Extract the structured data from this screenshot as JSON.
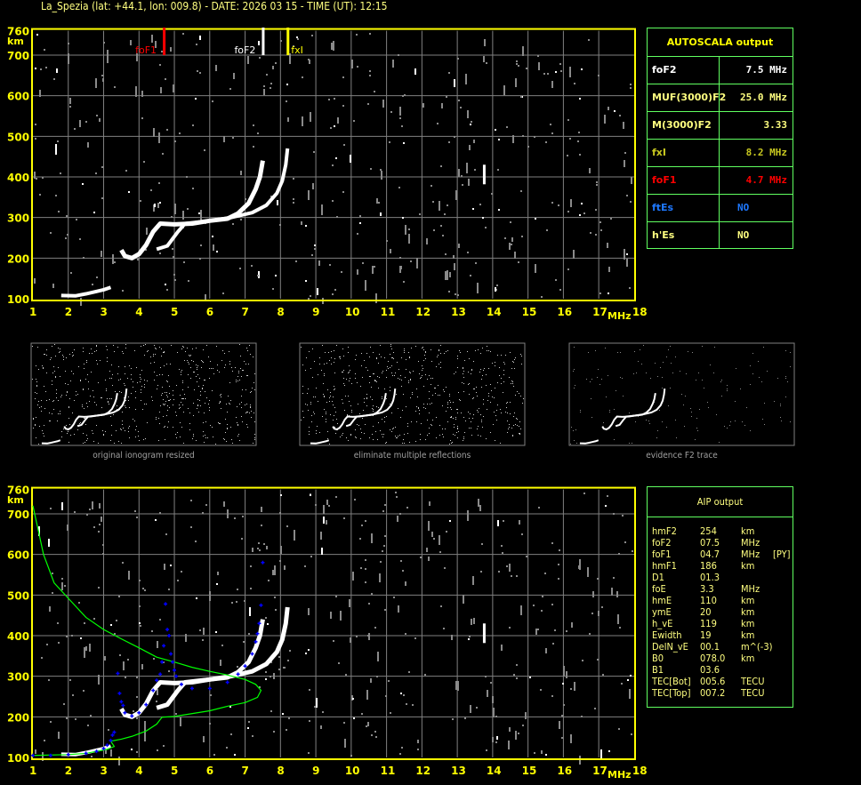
{
  "title": "La_Spezia (lat: +44.1, lon: 009.8) - DATE: 2026 03 15 - TIME (UT): 12:15",
  "colors": {
    "axis": "#ffff00",
    "grid": "#808080",
    "trace": "#ffffff",
    "profile": "#00ff00",
    "aip_trace": "#0000ff",
    "foF1": "#ff0000",
    "foF2": "#ffffff",
    "fxI": "#ffff00",
    "table_border": "#60ff60"
  },
  "autoscala": {
    "title": "AUTOSCALA output",
    "rows": [
      {
        "key": "foF2",
        "value": "7.5 MHz",
        "color": "#ffffff"
      },
      {
        "key": "MUF(3000)F2",
        "value": "25.0 MHz",
        "color": "#ffff80"
      },
      {
        "key": "M(3000)F2",
        "value": "3.33",
        "color": "#ffff80"
      },
      {
        "key": "fxI",
        "value": "8.2 MHz",
        "color": "#c8c820"
      },
      {
        "key": "foF1",
        "value": "4.7 MHz",
        "color": "#ff0000"
      },
      {
        "key": "ftEs",
        "value": "NO",
        "color": "#1e78ff"
      },
      {
        "key": "h'Es",
        "value": "NO",
        "color": "#ffff80"
      }
    ]
  },
  "aip": {
    "title": "AIP output",
    "rows": [
      [
        "hmF2",
        "254",
        "km",
        ""
      ],
      [
        "foF2",
        "07.5",
        "MHz",
        ""
      ],
      [
        "foF1",
        "04.7",
        "MHz",
        "[PY]"
      ],
      [
        "hmF1",
        "186",
        "km",
        ""
      ],
      [
        "D1",
        "01.3",
        "",
        ""
      ],
      [
        "foE",
        "3.3",
        "MHz",
        ""
      ],
      [
        "hmE",
        "110",
        "km",
        ""
      ],
      [
        "ymE",
        "20",
        "km",
        ""
      ],
      [
        "h_vE",
        "119",
        "km",
        ""
      ],
      [
        "Ewidth",
        "19",
        "km",
        ""
      ],
      [
        "DelN_vE",
        "00.1",
        "m^(-3)",
        ""
      ],
      [
        "B0",
        "078.0",
        "km",
        ""
      ],
      [
        "B1",
        "03.6",
        "",
        ""
      ],
      [
        "TEC[Bot]",
        "005.6",
        "TECU",
        ""
      ],
      [
        "TEC[Top]",
        "007.2",
        "TECU",
        ""
      ]
    ]
  },
  "thumbnails": [
    {
      "caption": "original ionogram resized"
    },
    {
      "caption": "eliminate multiple reflections"
    },
    {
      "caption": "evidence F2 trace"
    }
  ],
  "chart_data": [
    {
      "type": "scatter",
      "name_tag": "autoscala-ionogram",
      "xlabel": "MHz",
      "ylabel": "km",
      "xlim": [
        1,
        18
      ],
      "ylim": [
        100,
        760
      ],
      "xticks": [
        "1",
        "2",
        "3",
        "4",
        "5",
        "6",
        "7",
        "8",
        "9",
        "10",
        "11",
        "12",
        "13",
        "14",
        "15",
        "16",
        "17",
        "18"
      ],
      "yticks": [
        "100",
        "200",
        "300",
        "400",
        "500",
        "600",
        "700",
        "760"
      ],
      "grid": true,
      "markers": [
        {
          "label": "foF1",
          "freq": 4.7
        },
        {
          "label": "foF2",
          "freq": 7.5
        },
        {
          "label": "fxI",
          "freq": 8.2
        }
      ],
      "series": [
        {
          "points": [
            [
              1.8,
              108
            ],
            [
              2.2,
              107
            ],
            [
              2.5,
              112
            ],
            [
              2.8,
              118
            ],
            [
              3.0,
              122
            ],
            [
              3.2,
              128
            ]
          ]
        },
        {
          "points": [
            [
              3.5,
              220
            ],
            [
              3.6,
              205
            ],
            [
              3.8,
              200
            ],
            [
              4.0,
              210
            ],
            [
              4.2,
              232
            ],
            [
              4.4,
              265
            ],
            [
              4.6,
              285
            ],
            [
              5.0,
              283
            ],
            [
              5.5,
              285
            ],
            [
              6.0,
              292
            ],
            [
              6.5,
              297
            ],
            [
              6.8,
              310
            ],
            [
              7.1,
              335
            ],
            [
              7.3,
              370
            ],
            [
              7.42,
              400
            ],
            [
              7.5,
              440
            ]
          ]
        },
        {
          "points": [
            [
              4.5,
              222
            ],
            [
              4.8,
              230
            ],
            [
              5.1,
              265
            ],
            [
              5.3,
              285
            ],
            [
              6.0,
              292
            ],
            [
              6.6,
              300
            ],
            [
              7.2,
              312
            ],
            [
              7.6,
              330
            ],
            [
              7.9,
              360
            ],
            [
              8.05,
              390
            ],
            [
              8.15,
              430
            ],
            [
              8.2,
              470
            ]
          ]
        }
      ]
    },
    {
      "type": "line",
      "name_tag": "aip-ionogram",
      "xlabel": "MHz",
      "ylabel": "km",
      "xlim": [
        1,
        18
      ],
      "ylim": [
        100,
        760
      ],
      "grid": true,
      "profile": [
        [
          1.0,
          720
        ],
        [
          1.3,
          600
        ],
        [
          1.6,
          530
        ],
        [
          2.0,
          492
        ],
        [
          2.5,
          445
        ],
        [
          3.0,
          415
        ],
        [
          3.5,
          392
        ],
        [
          4.0,
          370
        ],
        [
          4.5,
          347
        ],
        [
          5.0,
          335
        ],
        [
          5.5,
          322
        ],
        [
          6.0,
          312
        ],
        [
          6.5,
          303
        ],
        [
          7.0,
          292
        ],
        [
          7.3,
          280
        ],
        [
          7.45,
          265
        ],
        [
          7.35,
          248
        ],
        [
          7.0,
          235
        ],
        [
          6.5,
          226
        ],
        [
          6.0,
          215
        ],
        [
          5.0,
          201
        ],
        [
          4.65,
          199
        ],
        [
          4.5,
          182
        ],
        [
          4.2,
          165
        ],
        [
          3.8,
          152
        ],
        [
          3.5,
          145
        ],
        [
          3.2,
          140
        ],
        [
          3.3,
          127
        ],
        [
          3.1,
          120
        ],
        [
          2.5,
          110
        ],
        [
          2.0,
          107
        ],
        [
          1.0,
          105
        ]
      ],
      "aip_trace": [
        [
          1.0,
          105
        ],
        [
          1.5,
          105
        ],
        [
          2.0,
          107
        ],
        [
          2.5,
          110
        ],
        [
          2.8,
          115
        ],
        [
          3.0,
          122
        ],
        [
          3.1,
          130
        ],
        [
          3.2,
          142
        ],
        [
          3.25,
          155
        ],
        [
          3.3,
          162
        ],
        [
          3.4,
          307
        ],
        [
          3.45,
          258
        ],
        [
          3.5,
          237
        ],
        [
          3.55,
          228
        ],
        [
          3.6,
          210
        ],
        [
          3.8,
          202
        ],
        [
          4.0,
          210
        ],
        [
          4.2,
          230
        ],
        [
          4.4,
          265
        ],
        [
          4.5,
          290
        ],
        [
          4.6,
          305
        ],
        [
          4.65,
          335
        ],
        [
          4.7,
          375
        ],
        [
          4.75,
          478
        ],
        [
          4.8,
          415
        ],
        [
          4.85,
          400
        ],
        [
          4.9,
          355
        ],
        [
          4.95,
          335
        ],
        [
          5.0,
          315
        ],
        [
          5.05,
          300
        ],
        [
          5.2,
          280
        ],
        [
          5.5,
          270
        ],
        [
          6.0,
          270
        ],
        [
          6.5,
          285
        ],
        [
          6.8,
          305
        ],
        [
          7.0,
          325
        ],
        [
          7.2,
          355
        ],
        [
          7.3,
          385
        ],
        [
          7.35,
          405
        ],
        [
          7.4,
          430
        ],
        [
          7.45,
          475
        ],
        [
          7.5,
          580
        ]
      ]
    }
  ]
}
